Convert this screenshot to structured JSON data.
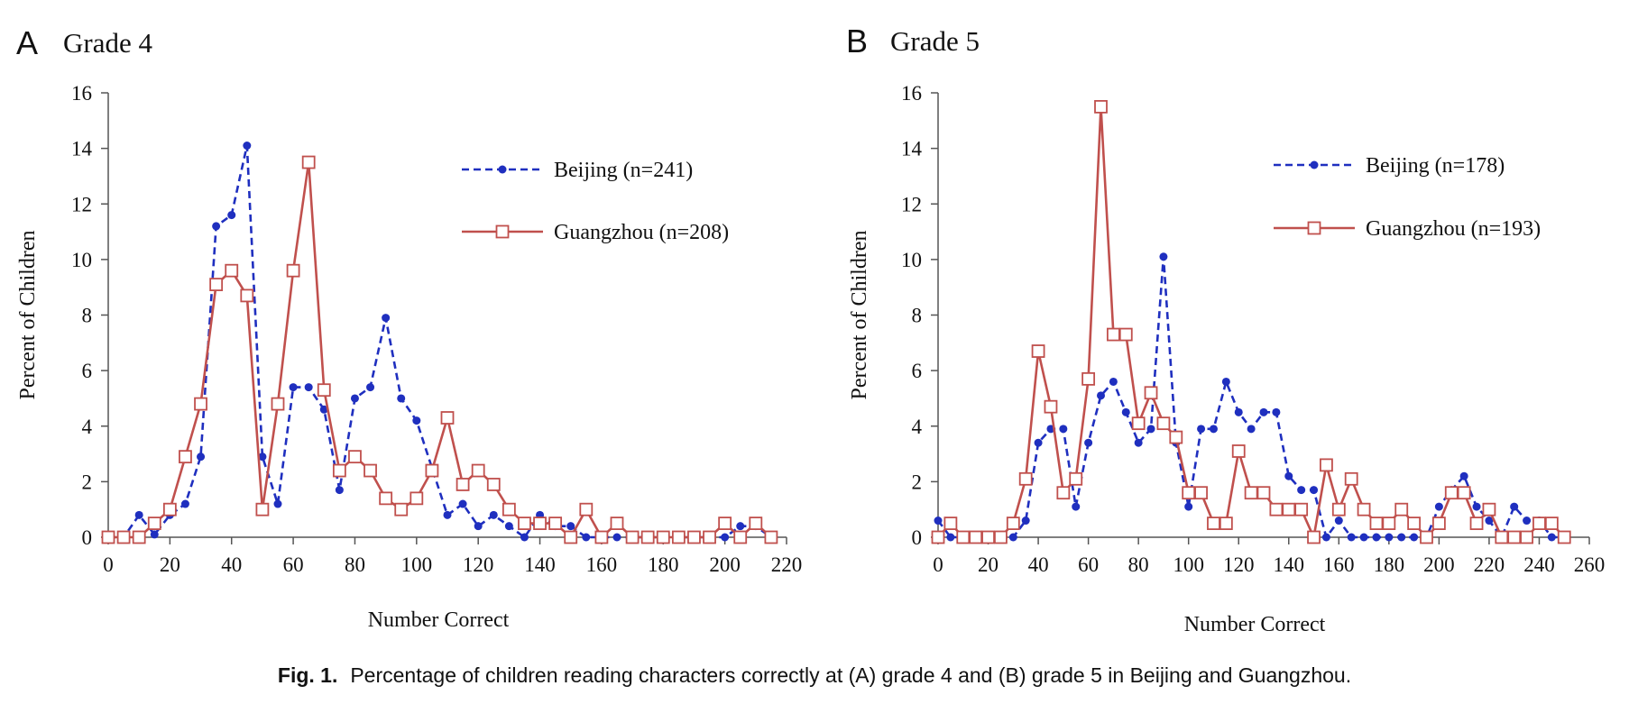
{
  "caption": {
    "label": "Fig. 1.",
    "text": "Percentage of children reading characters correctly at (A) grade 4 and (B) grade 5 in Beijing and Guangzhou."
  },
  "chart_data": [
    {
      "type": "line",
      "panel": "A",
      "title": "Grade 4",
      "xlabel": "Number Correct",
      "ylabel": "Percent of Children",
      "xlim": [
        0,
        220
      ],
      "ylim": [
        0,
        16
      ],
      "xticks": [
        0,
        20,
        40,
        60,
        80,
        100,
        120,
        140,
        160,
        180,
        200,
        220
      ],
      "yticks": [
        0,
        2,
        4,
        6,
        8,
        10,
        12,
        14,
        16
      ],
      "grid": false,
      "legend": "top-right",
      "series": [
        {
          "name": "Beijing (n=241)",
          "color": "#1f2fbf",
          "style": "dashed",
          "marker": "circle",
          "x": [
            0,
            5,
            10,
            15,
            20,
            25,
            30,
            35,
            40,
            45,
            50,
            55,
            60,
            65,
            70,
            75,
            80,
            85,
            90,
            95,
            100,
            105,
            110,
            115,
            120,
            125,
            130,
            135,
            140,
            145,
            150,
            155,
            160,
            165,
            170,
            175,
            180,
            185,
            190,
            195,
            200,
            205,
            210,
            215
          ],
          "y": [
            0,
            0,
            0.8,
            0.1,
            0.8,
            1.2,
            2.9,
            11.2,
            11.6,
            14.1,
            2.9,
            1.2,
            5.4,
            5.4,
            4.6,
            1.7,
            5.0,
            5.4,
            7.9,
            5.0,
            4.2,
            2.5,
            0.8,
            1.2,
            0.4,
            0.8,
            0.4,
            0,
            0.8,
            0.4,
            0.4,
            0,
            0,
            0,
            0,
            0,
            0,
            0,
            0,
            0,
            0,
            0.4,
            0.4,
            0
          ]
        },
        {
          "name": "Guangzhou (n=208)",
          "color": "#c0504d",
          "style": "solid",
          "marker": "square",
          "x": [
            0,
            5,
            10,
            15,
            20,
            25,
            30,
            35,
            40,
            45,
            50,
            55,
            60,
            65,
            70,
            75,
            80,
            85,
            90,
            95,
            100,
            105,
            110,
            115,
            120,
            125,
            130,
            135,
            140,
            145,
            150,
            155,
            160,
            165,
            170,
            175,
            180,
            185,
            190,
            195,
            200,
            205,
            210,
            215
          ],
          "y": [
            0,
            0,
            0,
            0.5,
            1.0,
            2.9,
            4.8,
            9.1,
            9.6,
            8.7,
            1.0,
            4.8,
            9.6,
            13.5,
            5.3,
            2.4,
            2.9,
            2.4,
            1.4,
            1.0,
            1.4,
            2.4,
            4.3,
            1.9,
            2.4,
            1.9,
            1.0,
            0.5,
            0.5,
            0.5,
            0,
            1.0,
            0,
            0.5,
            0,
            0,
            0,
            0,
            0,
            0,
            0.5,
            0,
            0.5,
            0
          ]
        }
      ]
    },
    {
      "type": "line",
      "panel": "B",
      "title": "Grade 5",
      "xlabel": "Number Correct",
      "ylabel": "Percent of Children",
      "xlim": [
        0,
        260
      ],
      "ylim": [
        0,
        16
      ],
      "xticks": [
        0,
        20,
        40,
        60,
        80,
        100,
        120,
        140,
        160,
        180,
        200,
        220,
        240,
        260
      ],
      "yticks": [
        0,
        2,
        4,
        6,
        8,
        10,
        12,
        14,
        16
      ],
      "grid": false,
      "legend": "top-right",
      "series": [
        {
          "name": "Beijing (n=178)",
          "color": "#1f2fbf",
          "style": "dashed",
          "marker": "circle",
          "x": [
            0,
            5,
            10,
            15,
            20,
            25,
            30,
            35,
            40,
            45,
            50,
            55,
            60,
            65,
            70,
            75,
            80,
            85,
            90,
            95,
            100,
            105,
            110,
            115,
            120,
            125,
            130,
            135,
            140,
            145,
            150,
            155,
            160,
            165,
            170,
            175,
            180,
            185,
            190,
            195,
            200,
            205,
            210,
            215,
            220,
            225,
            230,
            235,
            240,
            245,
            250
          ],
          "y": [
            0.6,
            0,
            0,
            0,
            0,
            0,
            0,
            0.6,
            3.4,
            3.9,
            3.9,
            1.1,
            3.4,
            5.1,
            5.6,
            4.5,
            3.4,
            3.9,
            10.1,
            3.4,
            1.1,
            3.9,
            3.9,
            5.6,
            4.5,
            3.9,
            4.5,
            4.5,
            2.2,
            1.7,
            1.7,
            0,
            0.6,
            0,
            0,
            0,
            0,
            0,
            0,
            0,
            1.1,
            1.7,
            2.2,
            1.1,
            0.6,
            0,
            1.1,
            0.6,
            0.6,
            0,
            0
          ]
        },
        {
          "name": "Guangzhou (n=193)",
          "color": "#c0504d",
          "style": "solid",
          "marker": "square",
          "x": [
            0,
            5,
            10,
            15,
            20,
            25,
            30,
            35,
            40,
            45,
            50,
            55,
            60,
            65,
            70,
            75,
            80,
            85,
            90,
            95,
            100,
            105,
            110,
            115,
            120,
            125,
            130,
            135,
            140,
            145,
            150,
            155,
            160,
            165,
            170,
            175,
            180,
            185,
            190,
            195,
            200,
            205,
            210,
            215,
            220,
            225,
            230,
            235,
            240,
            245,
            250
          ],
          "y": [
            0,
            0.5,
            0,
            0,
            0,
            0,
            0.5,
            2.1,
            6.7,
            4.7,
            1.6,
            2.1,
            5.7,
            15.5,
            7.3,
            7.3,
            4.1,
            5.2,
            4.1,
            3.6,
            1.6,
            1.6,
            0.5,
            0.5,
            3.1,
            1.6,
            1.6,
            1.0,
            1.0,
            1.0,
            0,
            2.6,
            1.0,
            2.1,
            1.0,
            0.5,
            0.5,
            1.0,
            0.5,
            0,
            0.5,
            1.6,
            1.6,
            0.5,
            1.0,
            0,
            0,
            0,
            0.5,
            0.5,
            0
          ]
        }
      ]
    }
  ]
}
